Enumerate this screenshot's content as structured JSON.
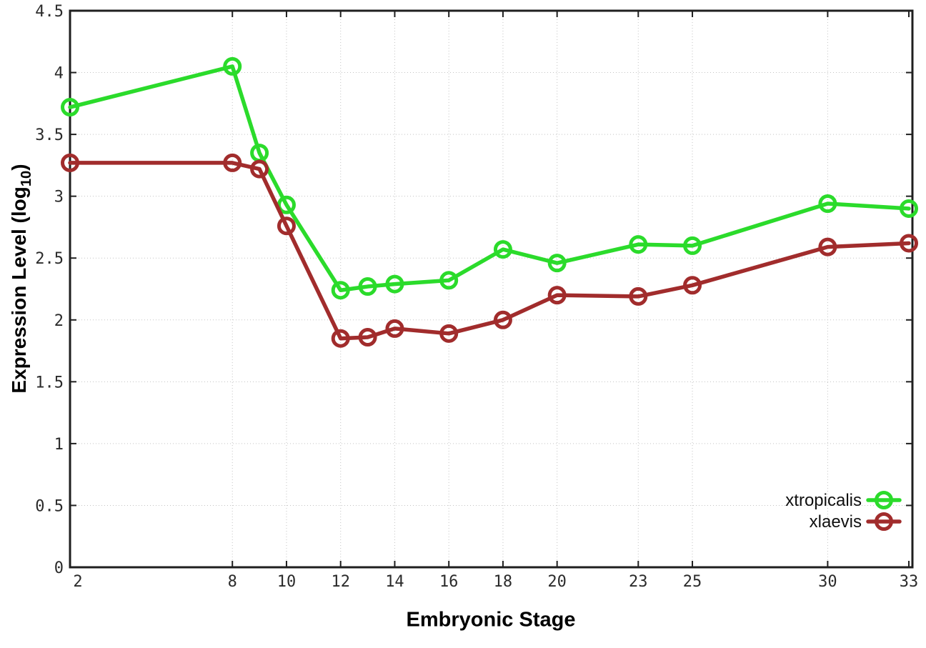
{
  "chart_data": {
    "type": "line",
    "title": "",
    "xlabel": "Embryonic Stage",
    "ylabel": "Expression Level (log10)",
    "ylabel_parts": {
      "pre": "Expression Level (log",
      "sub": "10",
      "post": ")"
    },
    "xlim": [
      2,
      33
    ],
    "ylim": [
      0,
      4.5
    ],
    "grid": true,
    "legend_position": "inside-bottom-right",
    "marker": "open-circle",
    "x_ticks": [
      2,
      8,
      10,
      12,
      14,
      16,
      18,
      20,
      23,
      25,
      30,
      33
    ],
    "y_ticks": [
      "0",
      "0.5",
      "1",
      "1.5",
      "2",
      "2.5",
      "3",
      "3.5",
      "4",
      "4.5"
    ],
    "x": [
      2,
      8,
      9,
      10,
      12,
      13,
      14,
      16,
      18,
      20,
      23,
      25,
      30,
      33
    ],
    "series": [
      {
        "name": "xtropicalis",
        "color": "#2bdb2b",
        "values": [
          3.72,
          4.05,
          3.35,
          2.93,
          2.24,
          2.27,
          2.29,
          2.32,
          2.57,
          2.46,
          2.61,
          2.6,
          2.94,
          2.9
        ]
      },
      {
        "name": "xlaevis",
        "color": "#a12c2c",
        "values": [
          3.27,
          3.27,
          3.22,
          2.76,
          1.85,
          1.86,
          1.93,
          1.89,
          2.0,
          2.2,
          2.19,
          2.28,
          2.59,
          2.62
        ]
      }
    ],
    "colors": {
      "grid": "#c3c3c3",
      "axis": "#1f1f1f",
      "tick_text": "#2b2b2b"
    }
  }
}
